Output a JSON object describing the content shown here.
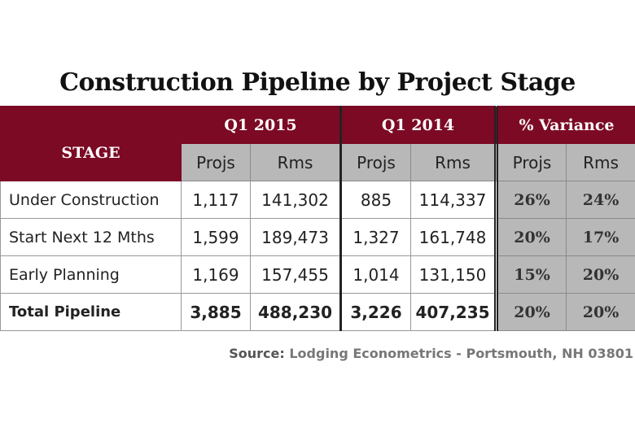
{
  "chart_data": {
    "type": "table",
    "title": "Construction Pipeline by Project Stage",
    "group_headers": [
      "Q1 2015",
      "Q1 2014",
      "% Variance"
    ],
    "stage_header": "STAGE",
    "sub_headers": [
      "Projs",
      "Rms",
      "Projs",
      "Rms",
      "Projs",
      "Rms"
    ],
    "rows": [
      {
        "stage": "Under Construction",
        "values": [
          "1,117",
          "141,302",
          "885",
          "114,337",
          "26%",
          "24%"
        ]
      },
      {
        "stage": "Start Next 12 Mths",
        "values": [
          "1,599",
          "189,473",
          "1,327",
          "161,748",
          "20%",
          "17%"
        ]
      },
      {
        "stage": "Early Planning",
        "values": [
          "1,169",
          "157,455",
          "1,014",
          "131,150",
          "15%",
          "20%"
        ]
      },
      {
        "stage": "Total Pipeline",
        "values": [
          "3,885",
          "488,230",
          "3,226",
          "407,235",
          "20%",
          "20%"
        ]
      }
    ],
    "source_label": "Source:",
    "source_text": "Lodging Econometrics - Portsmouth, NH 03801"
  },
  "colors": {
    "header": "#7c0a25",
    "subheader": "#b8b8b8"
  }
}
